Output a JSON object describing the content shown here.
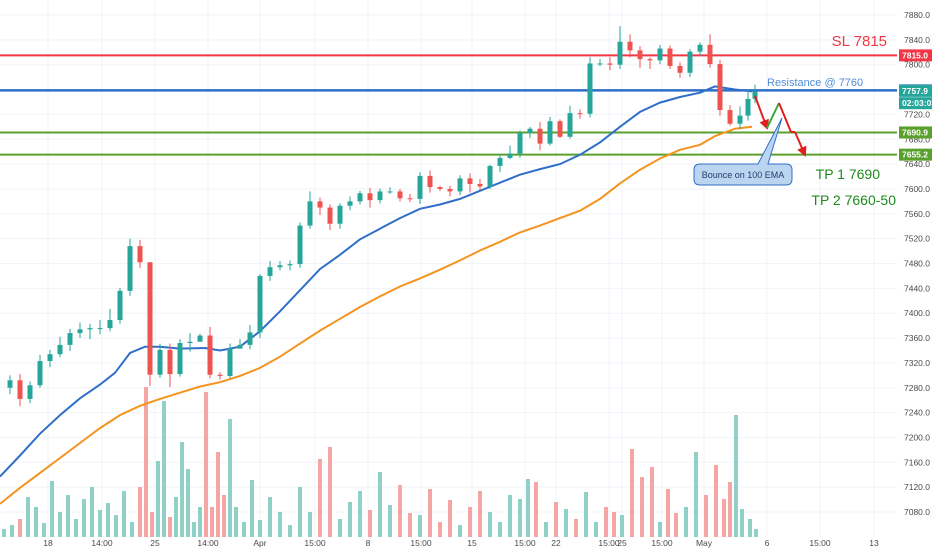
{
  "chart_data": {
    "type": "candlestick",
    "y_axis": {
      "ticks": [
        7880.0,
        7840.0,
        7800.0,
        7760.0,
        7720.0,
        7680.0,
        7640.0,
        7600.0,
        7560.0,
        7520.0,
        7480.0,
        7440.0,
        7400.0,
        7360.0,
        7320.0,
        7280.0,
        7240.0,
        7200.0,
        7160.0,
        7120.0,
        7080.0
      ],
      "range": [
        7052,
        7888
      ]
    },
    "x_axis": {
      "tick_labels": [
        "18",
        "14:00",
        "25",
        "14:00",
        "Apr",
        "15:00",
        "8",
        "15:00",
        "15",
        "15:00",
        "22",
        "15:00",
        "25",
        "15:00",
        "May",
        "6",
        "15:00",
        "13"
      ]
    },
    "levels": [
      {
        "name": "sl",
        "value": 7815.0,
        "label": "SL 7815",
        "badge": "7815.0",
        "color": "#f23645"
      },
      {
        "name": "resistance",
        "value": 7758.7,
        "label": "Resistance @ 7760",
        "badge": "7758.7",
        "color": "#2f6fc9"
      },
      {
        "name": "tp1",
        "value": 7690.9,
        "label": "TP 1 7690",
        "badge": "7690.9",
        "color": "#5aa02c"
      },
      {
        "name": "tp2",
        "value": 7655.2,
        "label": "TP 2 7660-50",
        "badge": "7655.2",
        "color": "#5aa02c"
      }
    ],
    "price_badges": [
      {
        "value": 7757.9,
        "label": "7757.9",
        "color": "#26a69a"
      },
      {
        "value": 7738.0,
        "label": "02:03:03",
        "color": "#26a69a"
      }
    ],
    "ema_50": [
      [
        0,
        7137
      ],
      [
        20,
        7171
      ],
      [
        40,
        7206
      ],
      [
        60,
        7236
      ],
      [
        80,
        7263
      ],
      [
        100,
        7285
      ],
      [
        115,
        7304
      ],
      [
        130,
        7336
      ],
      [
        145,
        7346
      ],
      [
        160,
        7346
      ],
      [
        180,
        7343
      ],
      [
        205,
        7344
      ],
      [
        220,
        7340
      ],
      [
        240,
        7346
      ],
      [
        260,
        7371
      ],
      [
        280,
        7403
      ],
      [
        300,
        7437
      ],
      [
        320,
        7471
      ],
      [
        340,
        7494
      ],
      [
        360,
        7519
      ],
      [
        380,
        7536
      ],
      [
        400,
        7553
      ],
      [
        420,
        7568
      ],
      [
        440,
        7575
      ],
      [
        460,
        7584
      ],
      [
        480,
        7597
      ],
      [
        500,
        7610
      ],
      [
        520,
        7623
      ],
      [
        540,
        7632
      ],
      [
        560,
        7640
      ],
      [
        580,
        7655
      ],
      [
        600,
        7675
      ],
      [
        620,
        7700
      ],
      [
        640,
        7724
      ],
      [
        660,
        7739
      ],
      [
        680,
        7748
      ],
      [
        700,
        7755
      ],
      [
        715,
        7765
      ],
      [
        735,
        7760
      ],
      [
        752,
        7757
      ]
    ],
    "ema_100": [
      [
        0,
        7093
      ],
      [
        20,
        7119
      ],
      [
        40,
        7143
      ],
      [
        60,
        7167
      ],
      [
        80,
        7191
      ],
      [
        100,
        7215
      ],
      [
        120,
        7236
      ],
      [
        140,
        7251
      ],
      [
        160,
        7262
      ],
      [
        180,
        7272
      ],
      [
        200,
        7282
      ],
      [
        220,
        7289
      ],
      [
        240,
        7299
      ],
      [
        260,
        7312
      ],
      [
        280,
        7330
      ],
      [
        300,
        7351
      ],
      [
        320,
        7372
      ],
      [
        340,
        7391
      ],
      [
        360,
        7410
      ],
      [
        380,
        7427
      ],
      [
        400,
        7443
      ],
      [
        420,
        7456
      ],
      [
        440,
        7470
      ],
      [
        460,
        7485
      ],
      [
        480,
        7501
      ],
      [
        500,
        7515
      ],
      [
        520,
        7530
      ],
      [
        540,
        7541
      ],
      [
        560,
        7553
      ],
      [
        580,
        7565
      ],
      [
        600,
        7584
      ],
      [
        620,
        7609
      ],
      [
        640,
        7631
      ],
      [
        660,
        7649
      ],
      [
        680,
        7663
      ],
      [
        700,
        7671
      ],
      [
        715,
        7685
      ],
      [
        735,
        7697
      ],
      [
        752,
        7700
      ]
    ],
    "candles": [
      [
        10,
        7280,
        7292,
        7270,
        7300
      ],
      [
        20,
        7292,
        7262,
        7250,
        7302
      ],
      [
        30,
        7262,
        7284,
        7255,
        7290
      ],
      [
        40,
        7284,
        7323,
        7280,
        7333
      ],
      [
        50,
        7323,
        7334,
        7313,
        7341
      ],
      [
        60,
        7334,
        7349,
        7329,
        7362
      ],
      [
        70,
        7349,
        7368,
        7339,
        7375
      ],
      [
        80,
        7368,
        7374,
        7360,
        7385
      ],
      [
        90,
        7374,
        7376,
        7358,
        7383
      ],
      [
        100,
        7376,
        7376,
        7366,
        7389
      ],
      [
        110,
        7376,
        7389,
        7371,
        7407
      ],
      [
        120,
        7389,
        7436,
        7383,
        7441
      ],
      [
        130,
        7436,
        7508,
        7428,
        7520
      ],
      [
        140,
        7508,
        7482,
        7473,
        7518
      ],
      [
        150,
        7482,
        7301,
        7283,
        7482
      ],
      [
        160,
        7301,
        7341,
        7296,
        7351
      ],
      [
        170,
        7341,
        7302,
        7281,
        7351
      ],
      [
        180,
        7302,
        7352,
        7298,
        7358
      ],
      [
        190,
        7352,
        7354,
        7338,
        7368
      ],
      [
        200,
        7354,
        7364,
        7360,
        7367
      ],
      [
        210,
        7364,
        7301,
        7295,
        7378
      ],
      [
        220,
        7301,
        7299,
        7293,
        7305
      ],
      [
        230,
        7299,
        7343,
        7295,
        7351
      ],
      [
        240,
        7343,
        7349,
        7343,
        7358
      ],
      [
        250,
        7349,
        7369,
        7342,
        7381
      ],
      [
        260,
        7369,
        7460,
        7360,
        7463
      ],
      [
        270,
        7460,
        7474,
        7452,
        7484
      ],
      [
        280,
        7474,
        7477,
        7469,
        7484
      ],
      [
        290,
        7477,
        7479,
        7469,
        7485
      ],
      [
        300,
        7479,
        7541,
        7473,
        7546
      ],
      [
        310,
        7541,
        7580,
        7536,
        7596
      ],
      [
        320,
        7580,
        7570,
        7558,
        7586
      ],
      [
        330,
        7570,
        7544,
        7534,
        7575
      ],
      [
        340,
        7544,
        7573,
        7536,
        7577
      ],
      [
        350,
        7573,
        7580,
        7566,
        7588
      ],
      [
        360,
        7580,
        7593,
        7575,
        7597
      ],
      [
        370,
        7593,
        7582,
        7570,
        7602
      ],
      [
        380,
        7582,
        7596,
        7577,
        7601
      ],
      [
        390,
        7596,
        7596,
        7592,
        7603
      ],
      [
        400,
        7596,
        7585,
        7580,
        7600
      ],
      [
        410,
        7585,
        7584,
        7579,
        7592
      ],
      [
        420,
        7584,
        7621,
        7576,
        7627
      ],
      [
        430,
        7621,
        7603,
        7594,
        7630
      ],
      [
        440,
        7603,
        7600,
        7597,
        7605
      ],
      [
        450,
        7600,
        7596,
        7588,
        7605
      ],
      [
        460,
        7596,
        7617,
        7590,
        7622
      ],
      [
        470,
        7617,
        7608,
        7594,
        7625
      ],
      [
        480,
        7608,
        7604,
        7598,
        7616
      ],
      [
        490,
        7604,
        7637,
        7600,
        7639
      ],
      [
        500,
        7637,
        7650,
        7627,
        7656
      ],
      [
        510,
        7650,
        7657,
        7648,
        7670
      ],
      [
        520,
        7657,
        7690,
        7650,
        7694
      ],
      [
        530,
        7690,
        7697,
        7682,
        7700
      ],
      [
        540,
        7697,
        7673,
        7662,
        7708
      ],
      [
        550,
        7673,
        7709,
        7670,
        7716
      ],
      [
        560,
        7709,
        7684,
        7682,
        7712
      ],
      [
        570,
        7684,
        7722,
        7681,
        7734
      ],
      [
        580,
        7722,
        7721,
        7713,
        7728
      ],
      [
        590,
        7721,
        7802,
        7715,
        7812
      ],
      [
        600,
        7802,
        7802,
        7798,
        7809
      ],
      [
        610,
        7802,
        7800,
        7791,
        7812
      ],
      [
        620,
        7800,
        7837,
        7793,
        7862
      ],
      [
        630,
        7837,
        7823,
        7812,
        7849
      ],
      [
        640,
        7823,
        7809,
        7795,
        7830
      ],
      [
        650,
        7809,
        7807,
        7793,
        7812
      ],
      [
        660,
        7807,
        7826,
        7801,
        7832
      ],
      [
        670,
        7826,
        7798,
        7793,
        7831
      ],
      [
        680,
        7798,
        7787,
        7779,
        7804
      ],
      [
        690,
        7787,
        7821,
        7780,
        7825
      ],
      [
        700,
        7821,
        7832,
        7814,
        7836
      ],
      [
        710,
        7832,
        7801,
        7795,
        7849
      ],
      [
        720,
        7801,
        7727,
        7718,
        7808
      ],
      [
        730,
        7727,
        7705,
        7702,
        7735
      ],
      [
        740,
        7705,
        7718,
        7696,
        7733
      ],
      [
        748,
        7718,
        7745,
        7710,
        7760
      ],
      [
        755,
        7745,
        7757,
        7738,
        7768
      ]
    ],
    "volume": [
      [
        4,
        8
      ],
      [
        12,
        12
      ],
      [
        20,
        18
      ],
      [
        28,
        40
      ],
      [
        36,
        30
      ],
      [
        44,
        14
      ],
      [
        52,
        56
      ],
      [
        60,
        25
      ],
      [
        68,
        42
      ],
      [
        76,
        18
      ],
      [
        84,
        38
      ],
      [
        92,
        50
      ],
      [
        100,
        27
      ],
      [
        108,
        34
      ],
      [
        116,
        22
      ],
      [
        124,
        46
      ],
      [
        132,
        15
      ],
      [
        140,
        50
      ],
      [
        146,
        150
      ],
      [
        152,
        25
      ],
      [
        158,
        76
      ],
      [
        164,
        136
      ],
      [
        170,
        20
      ],
      [
        176,
        40
      ],
      [
        182,
        95
      ],
      [
        188,
        68
      ],
      [
        194,
        15
      ],
      [
        200,
        30
      ],
      [
        206,
        145
      ],
      [
        212,
        30
      ],
      [
        218,
        85
      ],
      [
        224,
        42
      ],
      [
        230,
        118
      ],
      [
        236,
        30
      ],
      [
        244,
        15
      ],
      [
        252,
        57
      ],
      [
        260,
        17
      ],
      [
        270,
        40
      ],
      [
        280,
        25
      ],
      [
        290,
        12
      ],
      [
        300,
        50
      ],
      [
        310,
        25
      ],
      [
        320,
        78
      ],
      [
        330,
        90
      ],
      [
        340,
        18
      ],
      [
        350,
        35
      ],
      [
        360,
        46
      ],
      [
        370,
        27
      ],
      [
        380,
        65
      ],
      [
        390,
        32
      ],
      [
        400,
        52
      ],
      [
        410,
        24
      ],
      [
        420,
        22
      ],
      [
        430,
        48
      ],
      [
        440,
        15
      ],
      [
        450,
        37
      ],
      [
        460,
        12
      ],
      [
        470,
        30
      ],
      [
        480,
        46
      ],
      [
        490,
        25
      ],
      [
        500,
        15
      ],
      [
        510,
        42
      ],
      [
        520,
        38
      ],
      [
        528,
        58
      ],
      [
        536,
        55
      ],
      [
        546,
        15
      ],
      [
        556,
        35
      ],
      [
        566,
        28
      ],
      [
        576,
        18
      ],
      [
        586,
        45
      ],
      [
        596,
        15
      ],
      [
        606,
        30
      ],
      [
        614,
        25
      ],
      [
        622,
        22
      ],
      [
        632,
        88
      ],
      [
        642,
        60
      ],
      [
        652,
        70
      ],
      [
        660,
        15
      ],
      [
        668,
        48
      ],
      [
        676,
        24
      ],
      [
        686,
        30
      ],
      [
        696,
        85
      ],
      [
        706,
        42
      ],
      [
        716,
        72
      ],
      [
        724,
        38
      ],
      [
        730,
        55
      ],
      [
        736,
        122
      ],
      [
        742,
        28
      ],
      [
        750,
        18
      ],
      [
        756,
        8
      ]
    ]
  },
  "annotations": {
    "sl_label": "SL 7815",
    "resistance_label": "Resistance @ 7760",
    "tp1_label": "TP 1 7690",
    "tp2_label": "TP 2 7660-50",
    "callout_text": "Bounce on 100 EMA"
  },
  "colors": {
    "up": "#26a69a",
    "down": "#ef5350",
    "up_volume": "#8fd1c7",
    "down_volume": "#f5a5a3",
    "ema_50": "#2f6fc9",
    "ema_100": "#f5931e",
    "grid": "#f0f3fa",
    "axis_text": "#4a4a4a"
  }
}
